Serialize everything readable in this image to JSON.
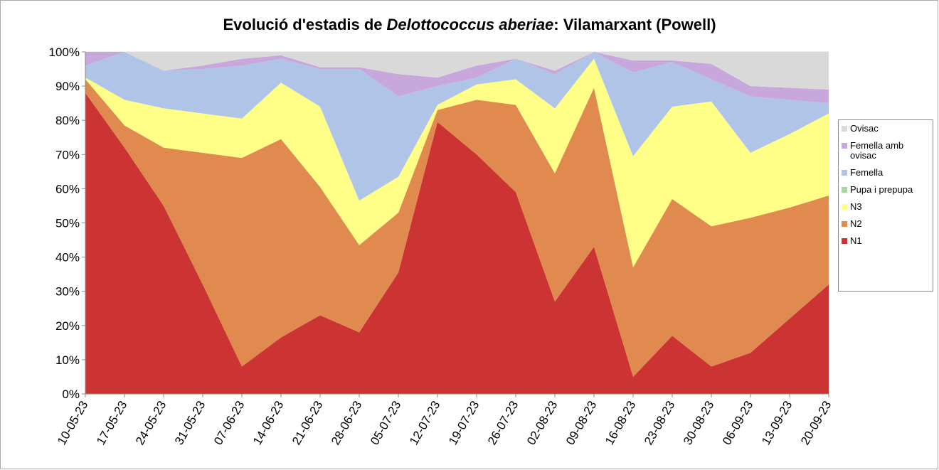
{
  "chart_data": {
    "type": "stacked_area",
    "title": [
      "Evolució d'estadis de",
      "Delottococcus aberiae",
      ": Vilamarxant (Powell)"
    ],
    "categories": [
      "10-05-23",
      "17-05-23",
      "24-05-23",
      "31-05-23",
      "07-06-23",
      "14-06-23",
      "21-06-23",
      "28-06-23",
      "05-07-23",
      "12-07-23",
      "19-07-23",
      "26-07-23",
      "02-08-23",
      "09-08-23",
      "16-08-23",
      "23-08-23",
      "30-08-23",
      "06-09-23",
      "13-09-23",
      "20-09-23"
    ],
    "series": [
      {
        "name": "N1",
        "color": "#cc3333",
        "values": [
          88,
          72,
          55,
          32,
          8,
          16.5,
          23,
          18,
          35.5,
          79.5,
          70,
          59,
          27,
          43,
          5,
          17,
          8,
          12,
          22,
          32
        ]
      },
      {
        "name": "N2",
        "color": "#e08a50",
        "values": [
          4,
          6.5,
          17,
          38.5,
          61,
          58,
          37.5,
          25.5,
          17.5,
          3.5,
          16,
          25.5,
          37.5,
          46.5,
          32,
          40,
          41,
          39.5,
          32.5,
          26
        ]
      },
      {
        "name": "N3",
        "color": "#ffff88",
        "values": [
          0.5,
          7.5,
          11.5,
          11.5,
          11.5,
          16.5,
          23.5,
          13,
          10.5,
          1.5,
          4.5,
          7.5,
          19,
          8.5,
          32.5,
          27,
          36.5,
          19,
          21.5,
          24
        ]
      },
      {
        "name": "Pupa i prepupa",
        "color": "#a8d8a0",
        "values": [
          0,
          0,
          0,
          0,
          0,
          0,
          0,
          0,
          0,
          0,
          0,
          0,
          0,
          0,
          0,
          0,
          0,
          0,
          0,
          0
        ]
      },
      {
        "name": "Femella",
        "color": "#b0c4e8",
        "values": [
          3.5,
          14,
          11,
          13,
          15.5,
          7,
          11,
          38.5,
          23.5,
          5.5,
          2,
          6,
          10,
          2,
          24.5,
          13,
          6.5,
          16.5,
          10,
          3
        ]
      },
      {
        "name": "Femella amb ovisac",
        "color": "#c8a8dc",
        "values": [
          4,
          0,
          0,
          1,
          2,
          1,
          0.5,
          0.5,
          6.5,
          2.5,
          3.5,
          0,
          1,
          0,
          3.5,
          0.5,
          4.5,
          3,
          3.5,
          4
        ]
      },
      {
        "name": "Ovisac",
        "color": "#d9d9d9",
        "values": [
          0,
          0,
          5.5,
          4,
          2,
          1,
          4.5,
          4.5,
          6.5,
          7.5,
          4,
          2,
          5.5,
          0,
          2.5,
          2.5,
          3.5,
          10,
          10.5,
          11
        ]
      }
    ],
    "ylim": [
      0,
      100
    ],
    "yticks": [
      {
        "value": 0,
        "label": "0%"
      },
      {
        "value": 10,
        "label": "10%"
      },
      {
        "value": 20,
        "label": "20%"
      },
      {
        "value": 30,
        "label": "30%"
      },
      {
        "value": 40,
        "label": "40%"
      },
      {
        "value": 50,
        "label": "50%"
      },
      {
        "value": 60,
        "label": "60%"
      },
      {
        "value": 70,
        "label": "70%"
      },
      {
        "value": 80,
        "label": "80%"
      },
      {
        "value": 90,
        "label": "90%"
      },
      {
        "value": 100,
        "label": "100%"
      }
    ],
    "grid": true,
    "legend": "right"
  }
}
